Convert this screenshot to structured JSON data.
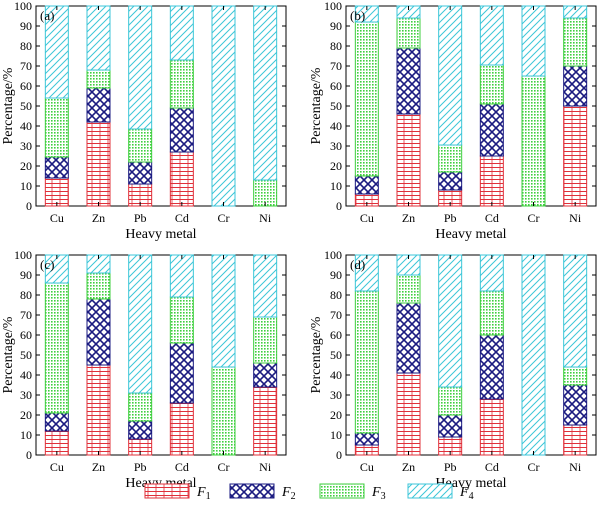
{
  "chart_data": [
    {
      "type": "bar",
      "panel_label": "(a)",
      "categories": [
        "Cu",
        "Zn",
        "Pb",
        "Cd",
        "Cr",
        "Ni"
      ],
      "series": [
        {
          "name": "F1",
          "values": [
            14,
            42,
            11,
            27,
            0,
            0
          ]
        },
        {
          "name": "F2",
          "values": [
            10.5,
            17,
            11,
            22,
            0,
            0
          ]
        },
        {
          "name": "F3",
          "values": [
            29.5,
            9,
            16.5,
            24,
            0,
            13
          ]
        },
        {
          "name": "F4",
          "values": [
            46,
            32,
            61.5,
            27,
            100,
            87
          ]
        }
      ],
      "xlabel": "Heavy metal",
      "ylabel": "Percentage/%",
      "ylim": [
        0,
        100
      ],
      "yticks": [
        "0",
        "10",
        "20",
        "30",
        "40",
        "50",
        "60",
        "70",
        "80",
        "90",
        "100"
      ]
    },
    {
      "type": "bar",
      "panel_label": "(b)",
      "categories": [
        "Cu",
        "Zn",
        "Pb",
        "Cd",
        "Cr",
        "Ni"
      ],
      "series": [
        {
          "name": "F1",
          "values": [
            6,
            46,
            8,
            25,
            0,
            50
          ]
        },
        {
          "name": "F2",
          "values": [
            9,
            33,
            9,
            26,
            0,
            20
          ]
        },
        {
          "name": "F3",
          "values": [
            77,
            15,
            13.5,
            19.5,
            65,
            24
          ]
        },
        {
          "name": "F4",
          "values": [
            8,
            6,
            69.5,
            29.5,
            35,
            6
          ]
        }
      ],
      "xlabel": "Heavy metal",
      "ylabel": "",
      "ylim": [
        0,
        100
      ],
      "yticks": [
        "0",
        "10",
        "20",
        "30",
        "40",
        "50",
        "60",
        "70",
        "80",
        "90",
        "100"
      ]
    },
    {
      "type": "bar",
      "panel_label": "(c)",
      "categories": [
        "Cu",
        "Zn",
        "Pb",
        "Cd",
        "Cr",
        "Ni"
      ],
      "series": [
        {
          "name": "F1",
          "values": [
            12,
            45,
            8,
            26,
            0,
            34
          ]
        },
        {
          "name": "F2",
          "values": [
            9,
            33,
            9,
            30,
            0,
            12
          ]
        },
        {
          "name": "F3",
          "values": [
            65,
            13,
            14,
            23,
            44,
            23
          ]
        },
        {
          "name": "F4",
          "values": [
            14,
            9,
            69,
            21,
            56,
            31
          ]
        }
      ],
      "xlabel": "Heavy metal",
      "ylabel": "Percentage/%",
      "ylim": [
        0,
        100
      ],
      "yticks": [
        "0",
        "10",
        "20",
        "30",
        "40",
        "50",
        "60",
        "70",
        "80",
        "90",
        "100"
      ]
    },
    {
      "type": "bar",
      "panel_label": "(d)",
      "categories": [
        "Cu",
        "Zn",
        "Pb",
        "Cd",
        "Cr",
        "Ni"
      ],
      "series": [
        {
          "name": "F1",
          "values": [
            5,
            41,
            9,
            28,
            0,
            15
          ]
        },
        {
          "name": "F2",
          "values": [
            6,
            35,
            11,
            32,
            0,
            20
          ]
        },
        {
          "name": "F3",
          "values": [
            71,
            14,
            14,
            22,
            0,
            9
          ]
        },
        {
          "name": "F4",
          "values": [
            18,
            10,
            66,
            18,
            100,
            56
          ]
        }
      ],
      "xlabel": "Heavy metal",
      "ylabel": "",
      "ylim": [
        0,
        100
      ],
      "yticks": [
        "0",
        "10",
        "20",
        "30",
        "40",
        "50",
        "60",
        "70",
        "80",
        "90",
        "100"
      ]
    }
  ],
  "legend": [
    {
      "symbol": "F",
      "sub": "1"
    },
    {
      "symbol": "F",
      "sub": "2"
    },
    {
      "symbol": "F",
      "sub": "3"
    },
    {
      "symbol": "F",
      "sub": "4"
    }
  ],
  "series_colors": {
    "F1": "#e0303a",
    "F2": "#1a1a80",
    "F3": "#3fcf3f",
    "F4": "#3cc6d8"
  }
}
